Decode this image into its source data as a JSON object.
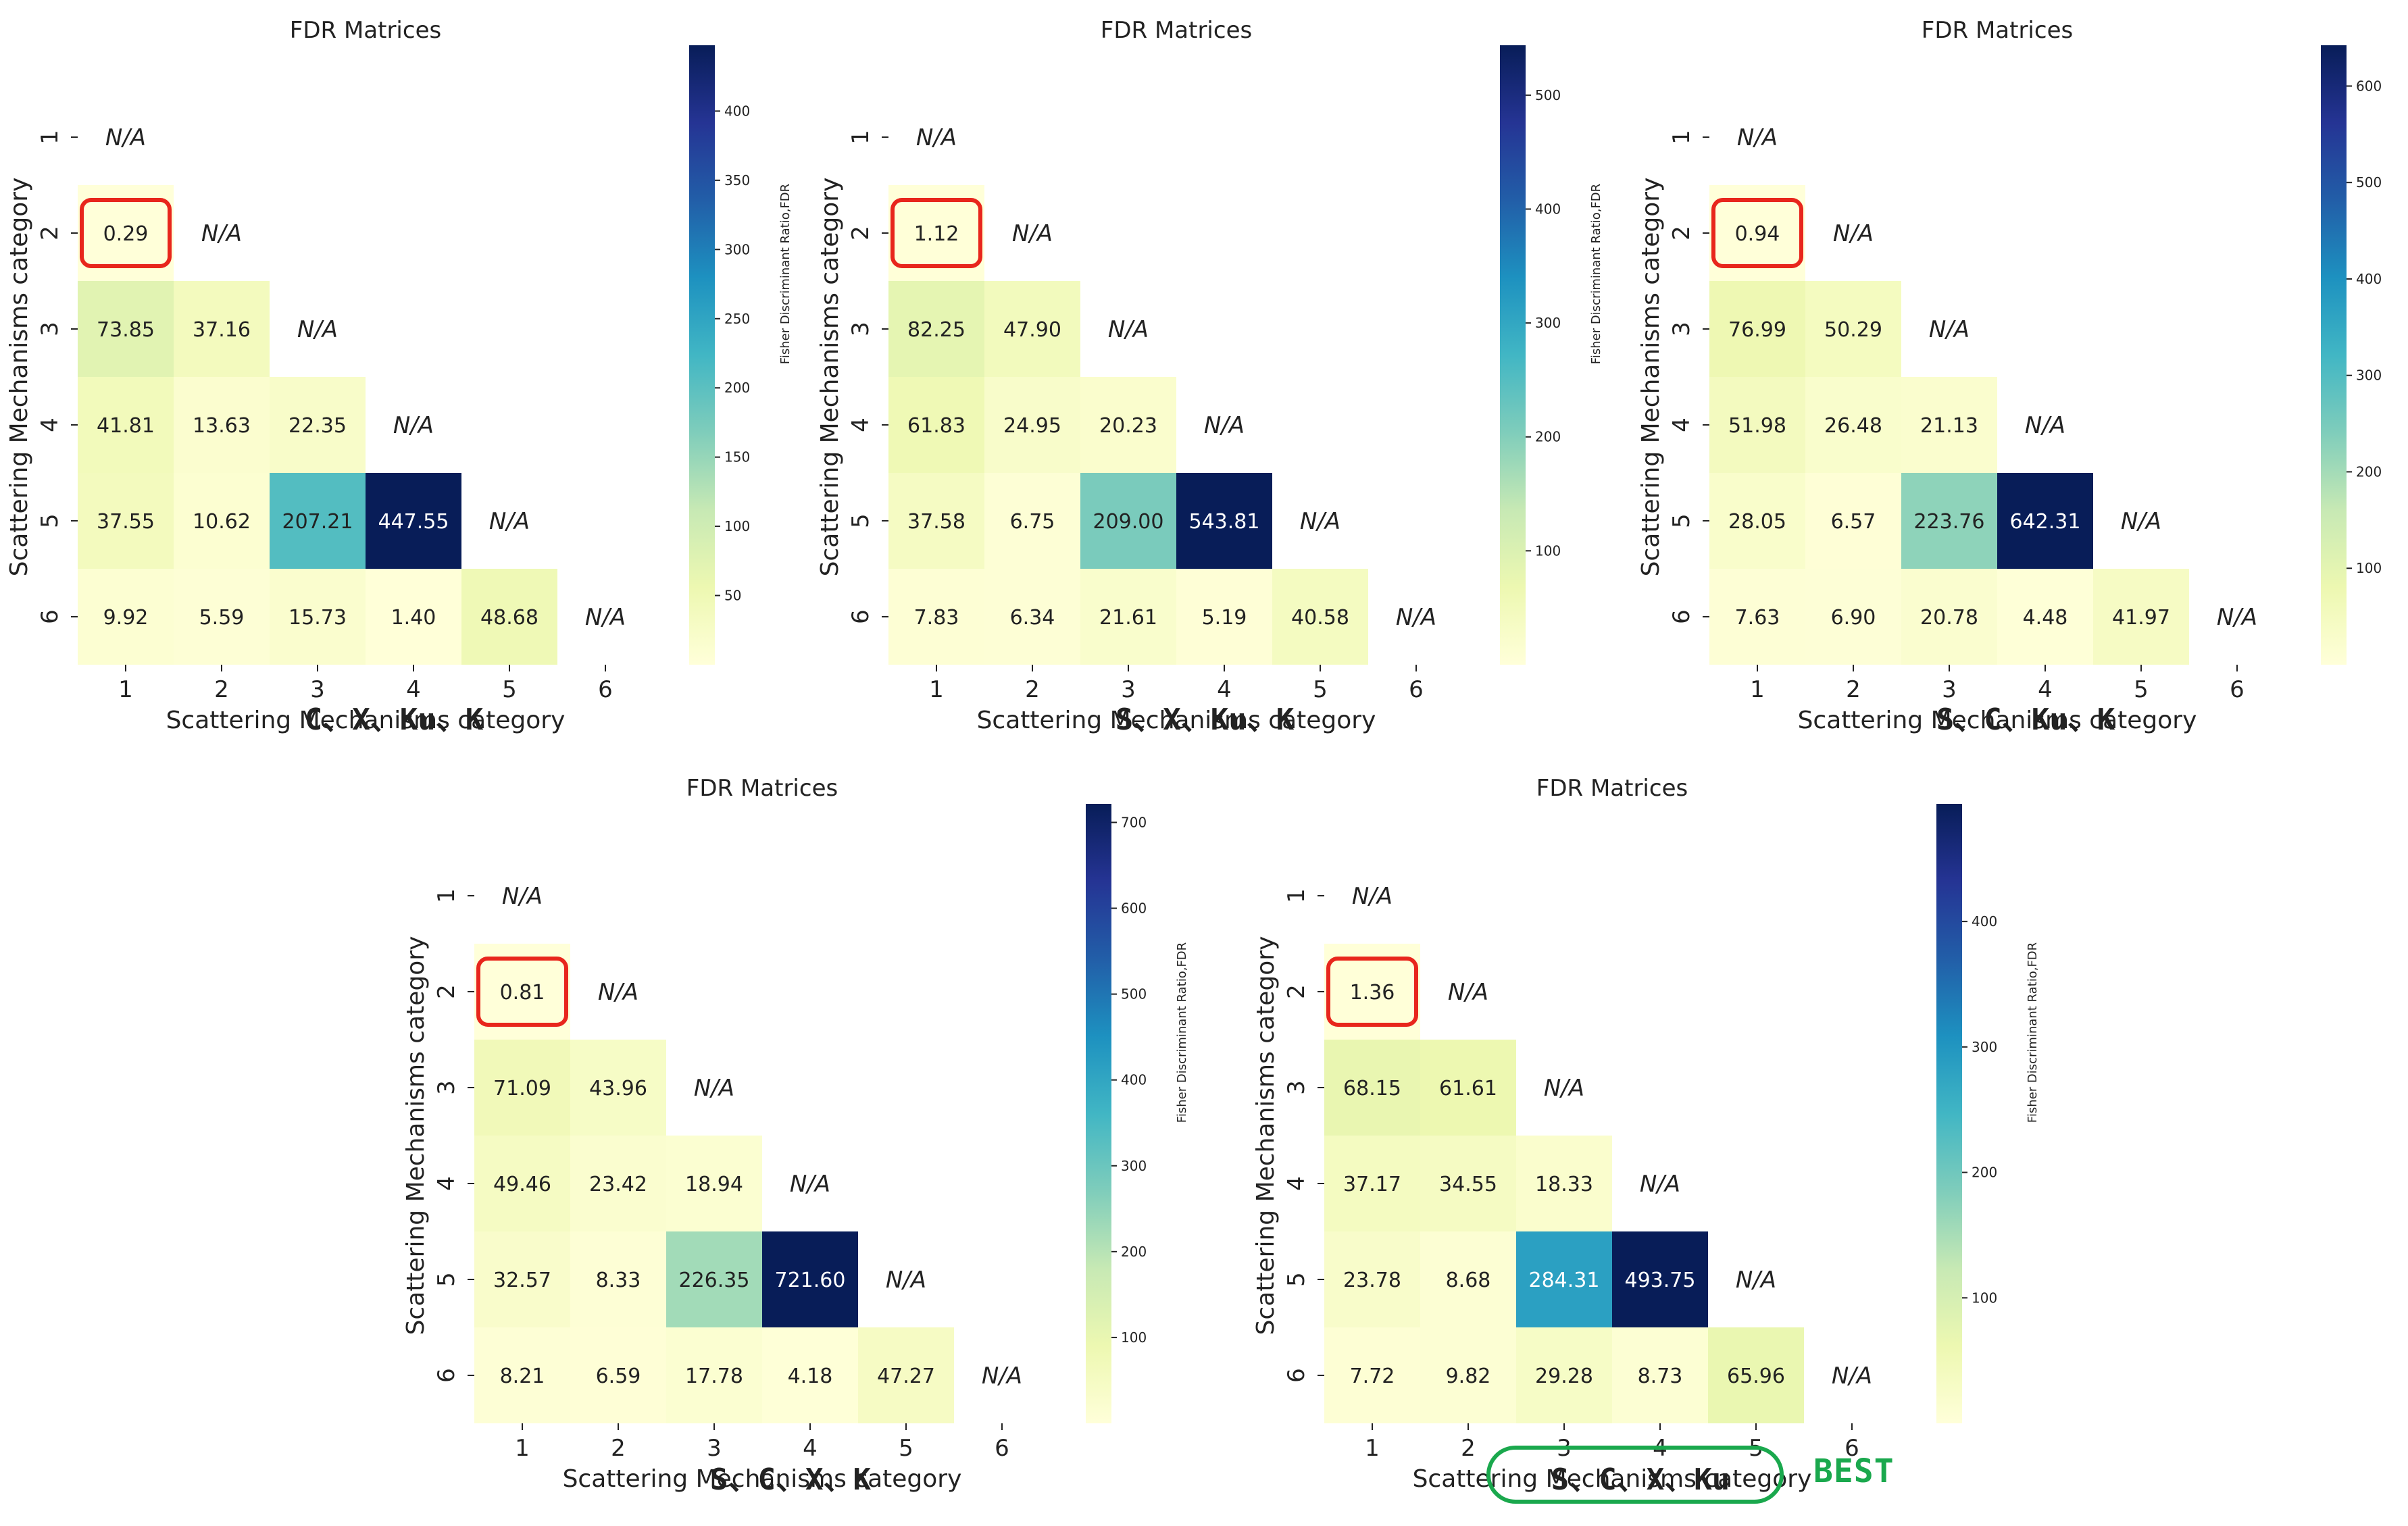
{
  "chart_data": [
    {
      "type": "heatmap",
      "title": "FDR Matrices",
      "xlabel": "Scattering Mechanisms category",
      "ylabel": "Scattering Mechanisms category",
      "categories": [
        "1",
        "2",
        "3",
        "4",
        "5",
        "6"
      ],
      "colorbar_label": "Fisher Discriminant Ratio,FDR",
      "colorbar_ticks": [
        "50",
        "100",
        "150",
        "200",
        "250",
        "300",
        "350",
        "400"
      ],
      "colorbar_range": [
        0,
        447.55
      ],
      "band_combination": "C、X、Ku、K",
      "na_label": "N/A",
      "highlighted_cell": "2-1",
      "values": [
        [
          null,
          null,
          null,
          null,
          null,
          null
        ],
        [
          0.29,
          null,
          null,
          null,
          null,
          null
        ],
        [
          73.85,
          37.16,
          null,
          null,
          null,
          null
        ],
        [
          41.81,
          13.63,
          22.35,
          null,
          null,
          null
        ],
        [
          37.55,
          10.62,
          207.21,
          447.55,
          null,
          null
        ],
        [
          9.92,
          5.59,
          15.73,
          1.4,
          48.68,
          null
        ]
      ],
      "value_labels": [
        [
          "N/A"
        ],
        [
          "0.29",
          "N/A"
        ],
        [
          "73.85",
          "37.16",
          "N/A"
        ],
        [
          "41.81",
          "13.63",
          "22.35",
          "N/A"
        ],
        [
          "37.55",
          "10.62",
          "207.21",
          "447.55",
          "N/A"
        ],
        [
          "9.92",
          "5.59",
          "15.73",
          "1.40",
          "48.68",
          "N/A"
        ]
      ]
    },
    {
      "type": "heatmap",
      "title": "FDR Matrices",
      "xlabel": "Scattering Mechanisms category",
      "ylabel": "Scattering Mechanisms category",
      "categories": [
        "1",
        "2",
        "3",
        "4",
        "5",
        "6"
      ],
      "colorbar_label": "Fisher Discriminant Ratio,FDR",
      "colorbar_ticks": [
        "100",
        "200",
        "300",
        "400",
        "500"
      ],
      "colorbar_range": [
        0,
        543.81
      ],
      "band_combination": "S、X、Ku、K",
      "na_label": "N/A",
      "highlighted_cell": "2-1",
      "values": [
        [
          null,
          null,
          null,
          null,
          null,
          null
        ],
        [
          1.12,
          null,
          null,
          null,
          null,
          null
        ],
        [
          82.25,
          47.9,
          null,
          null,
          null,
          null
        ],
        [
          61.83,
          24.95,
          20.23,
          null,
          null,
          null
        ],
        [
          37.58,
          6.75,
          209.0,
          543.81,
          null,
          null
        ],
        [
          7.83,
          6.34,
          21.61,
          5.19,
          40.58,
          null
        ]
      ],
      "value_labels": [
        [
          "N/A"
        ],
        [
          "1.12",
          "N/A"
        ],
        [
          "82.25",
          "47.90",
          "N/A"
        ],
        [
          "61.83",
          "24.95",
          "20.23",
          "N/A"
        ],
        [
          "37.58",
          "6.75",
          "209.00",
          "543.81",
          "N/A"
        ],
        [
          "7.83",
          "6.34",
          "21.61",
          "5.19",
          "40.58",
          "N/A"
        ]
      ]
    },
    {
      "type": "heatmap",
      "title": "FDR Matrices",
      "xlabel": "Scattering Mechanisms category",
      "ylabel": "Scattering Mechanisms category",
      "categories": [
        "1",
        "2",
        "3",
        "4",
        "5",
        "6"
      ],
      "colorbar_label": "Fisher Discriminant Ratio,FDR",
      "colorbar_ticks": [
        "100",
        "200",
        "300",
        "400",
        "500",
        "600"
      ],
      "colorbar_range": [
        0,
        642.31
      ],
      "band_combination": "S、C、Ku、K",
      "na_label": "N/A",
      "highlighted_cell": "2-1",
      "values": [
        [
          null,
          null,
          null,
          null,
          null,
          null
        ],
        [
          0.94,
          null,
          null,
          null,
          null,
          null
        ],
        [
          76.99,
          50.29,
          null,
          null,
          null,
          null
        ],
        [
          51.98,
          26.48,
          21.13,
          null,
          null,
          null
        ],
        [
          28.05,
          6.57,
          223.76,
          642.31,
          null,
          null
        ],
        [
          7.63,
          6.9,
          20.78,
          4.48,
          41.97,
          null
        ]
      ],
      "value_labels": [
        [
          "N/A"
        ],
        [
          "0.94",
          "N/A"
        ],
        [
          "76.99",
          "50.29",
          "N/A"
        ],
        [
          "51.98",
          "26.48",
          "21.13",
          "N/A"
        ],
        [
          "28.05",
          "6.57",
          "223.76",
          "642.31",
          "N/A"
        ],
        [
          "7.63",
          "6.90",
          "20.78",
          "4.48",
          "41.97",
          "N/A"
        ]
      ]
    },
    {
      "type": "heatmap",
      "title": "FDR Matrices",
      "xlabel": "Scattering Mechanisms category",
      "ylabel": "Scattering Mechanisms category",
      "categories": [
        "1",
        "2",
        "3",
        "4",
        "5",
        "6"
      ],
      "colorbar_label": "Fisher Discriminant Ratio,FDR",
      "colorbar_ticks": [
        "100",
        "200",
        "300",
        "400",
        "500",
        "600",
        "700"
      ],
      "colorbar_range": [
        0,
        721.6
      ],
      "band_combination": "S、C、X、K",
      "na_label": "N/A",
      "highlighted_cell": "2-1",
      "values": [
        [
          null,
          null,
          null,
          null,
          null,
          null
        ],
        [
          0.81,
          null,
          null,
          null,
          null,
          null
        ],
        [
          71.09,
          43.96,
          null,
          null,
          null,
          null
        ],
        [
          49.46,
          23.42,
          18.94,
          null,
          null,
          null
        ],
        [
          32.57,
          8.33,
          226.35,
          721.6,
          null,
          null
        ],
        [
          8.21,
          6.59,
          17.78,
          4.18,
          47.27,
          null
        ]
      ],
      "value_labels": [
        [
          "N/A"
        ],
        [
          "0.81",
          "N/A"
        ],
        [
          "71.09",
          "43.96",
          "N/A"
        ],
        [
          "49.46",
          "23.42",
          "18.94",
          "N/A"
        ],
        [
          "32.57",
          "8.33",
          "226.35",
          "721.60",
          "N/A"
        ],
        [
          "8.21",
          "6.59",
          "17.78",
          "4.18",
          "47.27",
          "N/A"
        ]
      ]
    },
    {
      "type": "heatmap",
      "title": "FDR Matrices",
      "xlabel": "Scattering Mechanisms category",
      "ylabel": "Scattering Mechanisms category",
      "categories": [
        "1",
        "2",
        "3",
        "4",
        "5",
        "6"
      ],
      "colorbar_label": "Fisher Discriminant Ratio,FDR",
      "colorbar_ticks": [
        "100",
        "200",
        "300",
        "400"
      ],
      "colorbar_range": [
        0,
        493.75
      ],
      "band_combination": "S、C、X、Ku",
      "na_label": "N/A",
      "highlighted_cell": "2-1",
      "best": true,
      "values": [
        [
          null,
          null,
          null,
          null,
          null,
          null
        ],
        [
          1.36,
          null,
          null,
          null,
          null,
          null
        ],
        [
          68.15,
          61.61,
          null,
          null,
          null,
          null
        ],
        [
          37.17,
          34.55,
          18.33,
          null,
          null,
          null
        ],
        [
          23.78,
          8.68,
          284.31,
          493.75,
          null,
          null
        ],
        [
          7.72,
          9.82,
          29.28,
          8.73,
          65.96,
          null
        ]
      ],
      "value_labels": [
        [
          "N/A"
        ],
        [
          "1.36",
          "N/A"
        ],
        [
          "68.15",
          "61.61",
          "N/A"
        ],
        [
          "37.17",
          "34.55",
          "18.33",
          "N/A"
        ],
        [
          "23.78",
          "8.68",
          "284.31",
          "493.75",
          "N/A"
        ],
        [
          "7.72",
          "9.82",
          "29.28",
          "8.73",
          "65.96",
          "N/A"
        ]
      ]
    }
  ],
  "best_label": "BEST",
  "colors": {
    "highlight_border": "#e8261c",
    "best_border": "#1aa84d",
    "best_text": "#1aa84d",
    "text_dark": "#222222",
    "text_light": "#ffffff"
  }
}
